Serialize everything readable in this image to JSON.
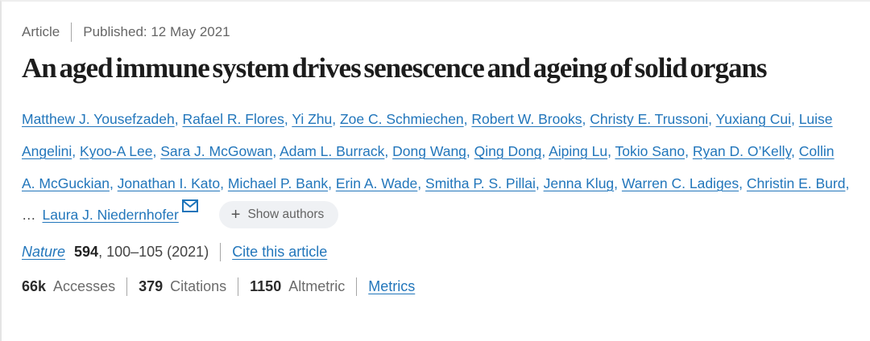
{
  "meta": {
    "type_label": "Article",
    "published_label": "Published: 12 May 2021"
  },
  "title": "An aged immune system drives senescence and ageing of solid organs",
  "authors": {
    "list": [
      "Matthew J. Yousefzadeh",
      "Rafael R. Flores",
      "Yi Zhu",
      "Zoe C. Schmiechen",
      "Robert W. Brooks",
      "Christy E. Trussoni",
      "Yuxiang Cui",
      "Luise Angelini",
      "Kyoo-A Lee",
      "Sara J. McGowan",
      "Adam L. Burrack",
      "Dong Wang",
      "Qing Dong",
      "Aiping Lu",
      "Tokio Sano",
      "Ryan D. O’Kelly",
      "Collin A. McGuckian",
      "Jonathan I. Kato",
      "Michael P. Bank",
      "Erin A. Wade",
      "Smitha P. S. Pillai",
      "Jenna Klug",
      "Warren C. Ladiges",
      "Christin E. Burd"
    ],
    "separator": ", ",
    "trailing_separator": ",",
    "ellipsis_prefix": "…",
    "corresponding_author": "Laura J. Niedernhofer",
    "email_icon": "envelope-icon"
  },
  "show_authors_button": {
    "plus": "+",
    "label": "Show authors"
  },
  "citation": {
    "journal": "Nature",
    "volume": "594",
    "pages": ", 100–105 (2021)",
    "cite_link_label": "Cite this article"
  },
  "metrics": {
    "items": [
      {
        "value": "66k",
        "label": "Accesses"
      },
      {
        "value": "379",
        "label": "Citations"
      },
      {
        "value": "1150",
        "label": "Altmetric"
      }
    ],
    "link_label": "Metrics"
  },
  "colors": {
    "link_blue": "#2276bb",
    "muted_gray": "#666666",
    "dark_text": "#222222"
  }
}
